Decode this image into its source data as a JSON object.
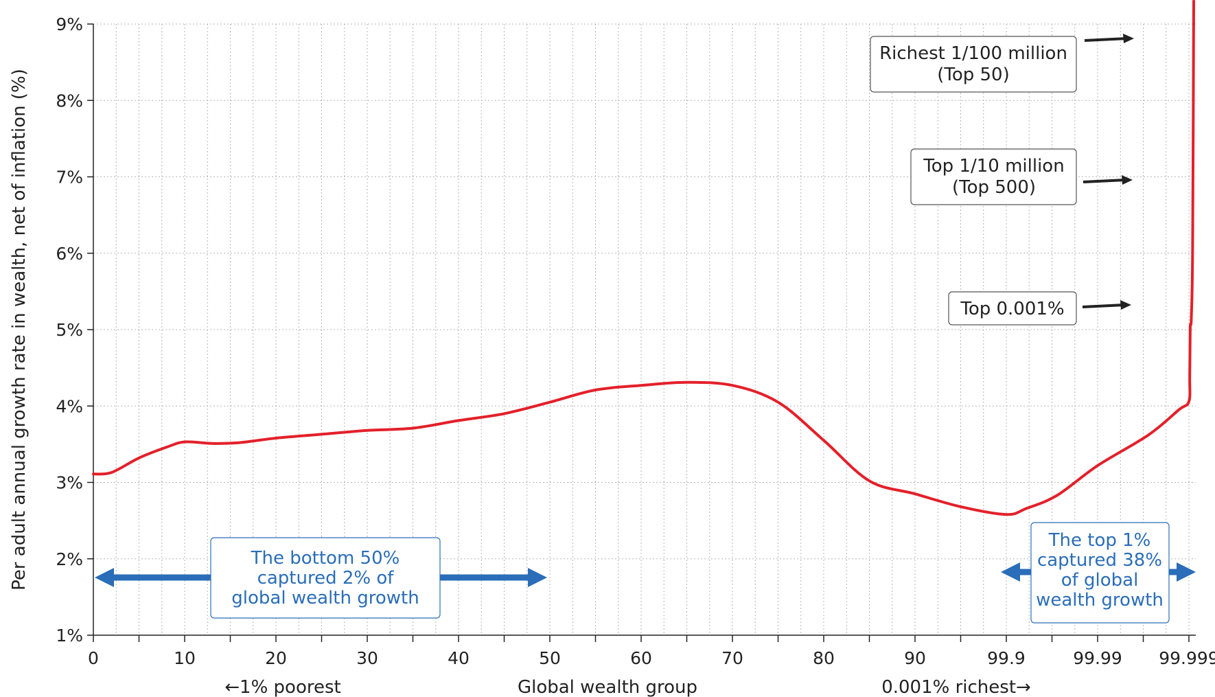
{
  "chart_data": {
    "type": "line",
    "title": "",
    "xlabel": "Global wealth group",
    "ylabel": "Per adult annual growth rate in wealth, net of inflation (%)",
    "x_left_note": "←1% poorest",
    "x_right_note": "0.001% richest→",
    "y_ticks": [
      "1%",
      "2%",
      "3%",
      "4%",
      "5%",
      "6%",
      "7%",
      "8%",
      "9%"
    ],
    "x_ticks": [
      "0",
      "10",
      "20",
      "30",
      "40",
      "50",
      "60",
      "70",
      "80",
      "90",
      "99.9",
      "99.99",
      "99.999"
    ],
    "ylim": [
      1,
      9
    ],
    "grid": true,
    "colors": {
      "line": "#e3202a",
      "blue": "#2a6db8",
      "grid": "#b5b5b5"
    },
    "series": [
      {
        "values": [
          [
            0,
            3.11
          ],
          [
            2,
            3.13
          ],
          [
            5,
            3.32
          ],
          [
            8,
            3.46
          ],
          [
            10,
            3.53
          ],
          [
            13,
            3.51
          ],
          [
            16,
            3.52
          ],
          [
            20,
            3.58
          ],
          [
            25,
            3.63
          ],
          [
            30,
            3.68
          ],
          [
            35,
            3.71
          ],
          [
            40,
            3.81
          ],
          [
            45,
            3.9
          ],
          [
            50,
            4.05
          ],
          [
            55,
            4.21
          ],
          [
            60,
            4.27
          ],
          [
            65,
            4.31
          ],
          [
            70,
            4.27
          ],
          [
            75,
            4.05
          ],
          [
            80,
            3.55
          ],
          [
            85,
            3.02
          ],
          [
            90,
            2.85
          ],
          [
            95,
            2.68
          ],
          [
            99.9,
            2.58
          ],
          [
            99.92,
            2.66
          ],
          [
            99.95,
            2.83
          ],
          [
            99.99,
            3.22
          ],
          [
            99.995,
            3.62
          ],
          [
            99.998,
            3.95
          ],
          [
            99.999,
            4.06
          ],
          [
            99.9993,
            4.39
          ],
          [
            99.9995,
            5.02
          ],
          [
            99.9999,
            5.15
          ],
          [
            99.99995,
            6.1
          ],
          [
            99.99999,
            9.3
          ]
        ]
      }
    ],
    "annotations": [
      {
        "id": "richest-100m",
        "lines": [
          "Richest 1/100 million",
          "(Top 50)"
        ]
      },
      {
        "id": "top-10m",
        "lines": [
          "Top 1/10 million",
          "(Top 500)"
        ]
      },
      {
        "id": "top-0001",
        "lines": [
          "Top 0.001%"
        ]
      }
    ],
    "callouts": [
      {
        "id": "bottom-50",
        "lines": [
          "The bottom 50%",
          "captured 2% of",
          "global wealth growth"
        ]
      },
      {
        "id": "top-1",
        "lines": [
          "The top 1%",
          "captured 38%",
          "of global",
          "wealth growth"
        ]
      }
    ]
  }
}
